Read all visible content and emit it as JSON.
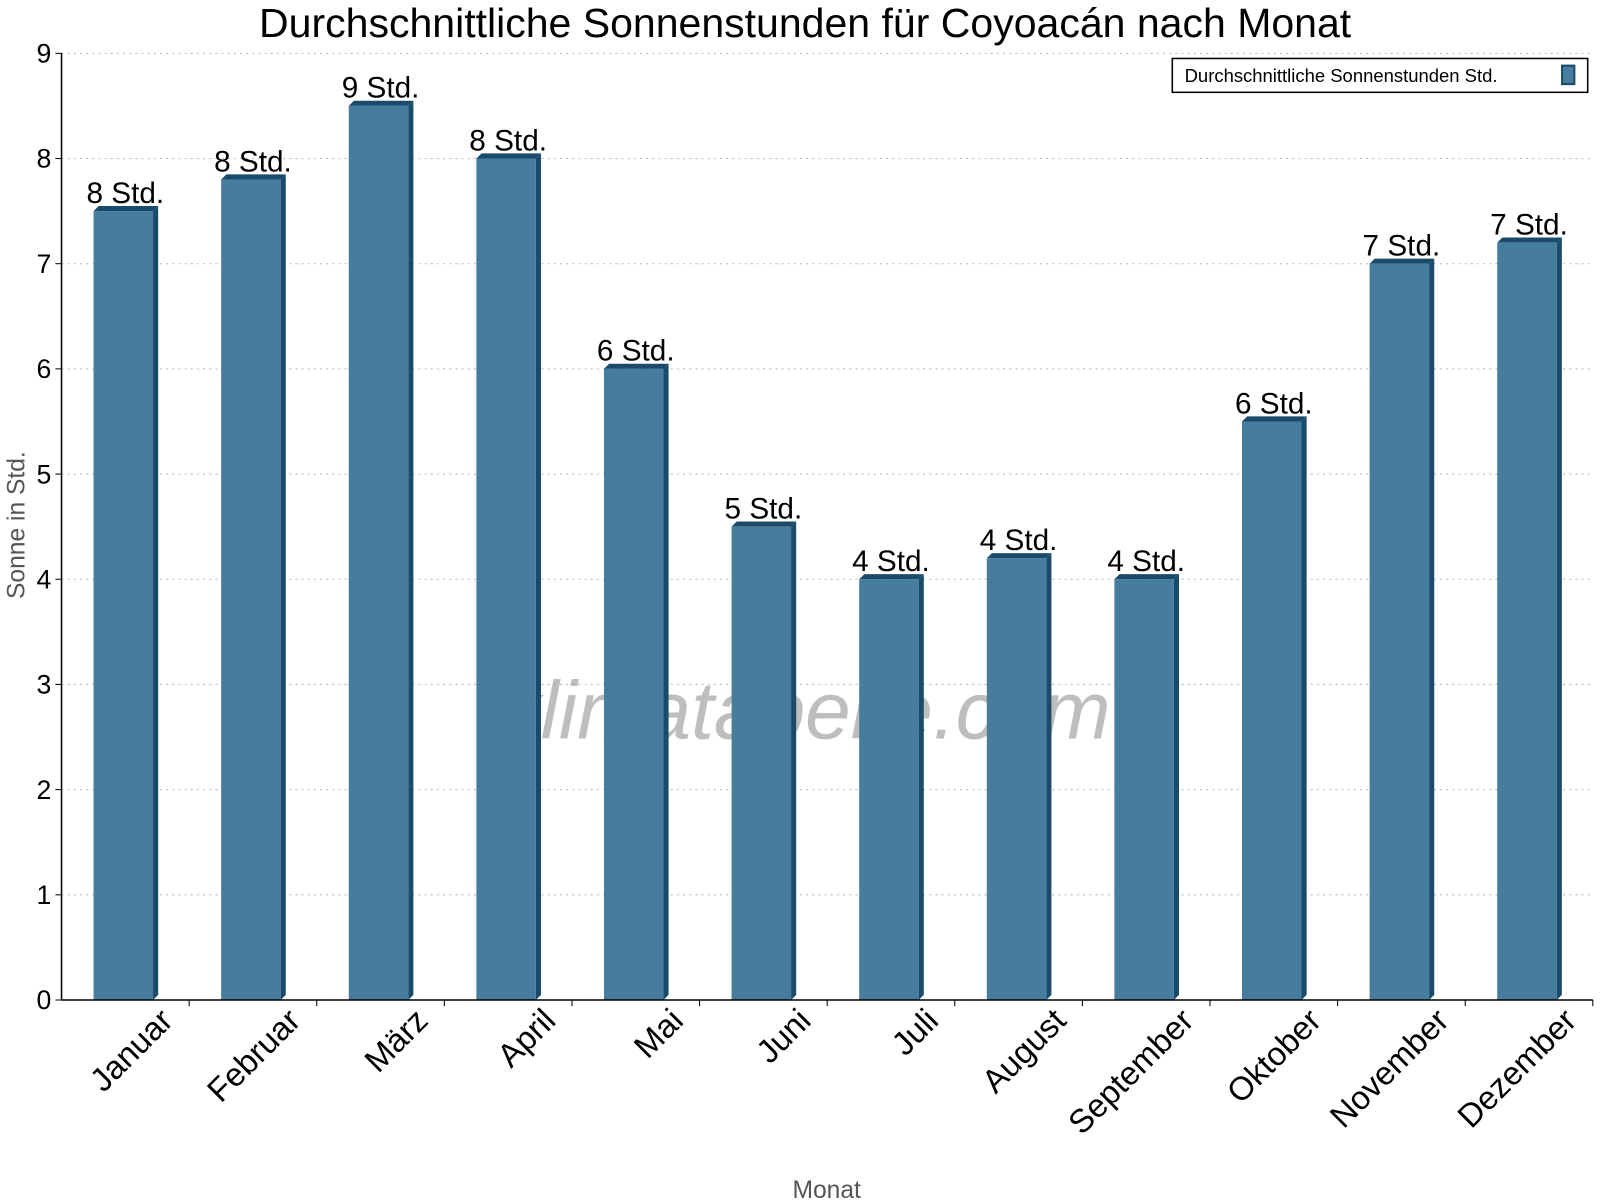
{
  "chart_data": {
    "type": "bar",
    "title": "Durchschnittliche Sonnenstunden für Coyoacán nach Monat",
    "xlabel": "Monat",
    "ylabel": "Sonne in Std.",
    "categories": [
      "Januar",
      "Februar",
      "März",
      "April",
      "Mai",
      "Juni",
      "Juli",
      "August",
      "September",
      "Oktober",
      "November",
      "Dezember"
    ],
    "series": [
      {
        "name": "Durchschnittliche Sonnenstunden Std.",
        "values": [
          7.5,
          7.8,
          8.5,
          8.0,
          6.0,
          4.5,
          4.0,
          4.2,
          4.0,
          5.5,
          7.0,
          7.2
        ],
        "data_labels": [
          "8 Std.",
          "8 Std.",
          "9 Std.",
          "8 Std.",
          "6 Std.",
          "5 Std.",
          "4 Std.",
          "4 Std.",
          "4 Std.",
          "6 Std.",
          "7 Std.",
          "7 Std."
        ]
      }
    ],
    "ylim": [
      0,
      9
    ],
    "yticks": [
      "0",
      "1",
      "2",
      "3",
      "4",
      "5",
      "6",
      "7",
      "8",
      "9"
    ],
    "grid": true,
    "legend_position": "top-right",
    "colors": {
      "bar_front": "#467c9e",
      "bar_side": "#1a4b6b"
    }
  },
  "watermark": "klimatabelle.com"
}
